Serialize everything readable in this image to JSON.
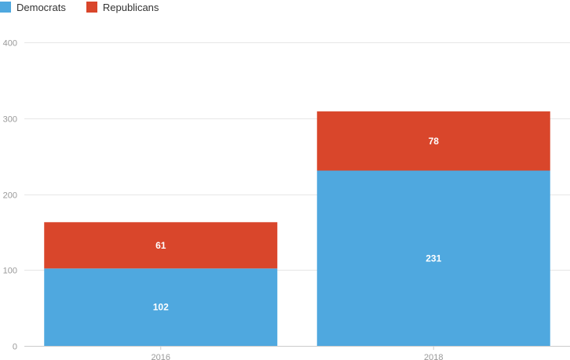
{
  "chart_data": {
    "type": "bar",
    "stacked": true,
    "categories": [
      "2016",
      "2018"
    ],
    "series": [
      {
        "name": "Democrats",
        "values": [
          102,
          231
        ],
        "color": "#4FA8DF"
      },
      {
        "name": "Republicans",
        "values": [
          61,
          78
        ],
        "color": "#D9462B"
      }
    ],
    "ylim": [
      0,
      400
    ],
    "yticks": [
      0,
      100,
      200,
      300,
      400
    ],
    "grid": true,
    "legend_position": "top-left",
    "data_labels": true
  }
}
